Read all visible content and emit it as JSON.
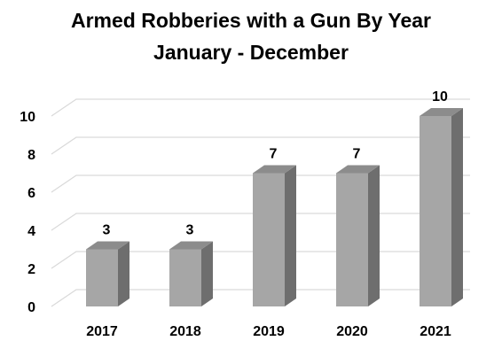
{
  "chart_data": {
    "type": "bar",
    "title": "Armed Robberies with a Gun By Year",
    "subtitle": "January - December",
    "xlabel": "",
    "ylabel": "",
    "categories": [
      "2017",
      "2018",
      "2019",
      "2020",
      "2021"
    ],
    "values": [
      3,
      3,
      7,
      7,
      10
    ],
    "ylim": [
      0,
      10
    ],
    "yticks": [
      0,
      2,
      4,
      6,
      8,
      10
    ],
    "grid": true,
    "legend": "none",
    "data_labels": true,
    "style": "3d",
    "colors": {
      "front": "#a6a6a6",
      "side": "#6e6e6e",
      "top": "#8c8c8c",
      "grid": "#d9d9d9"
    }
  }
}
